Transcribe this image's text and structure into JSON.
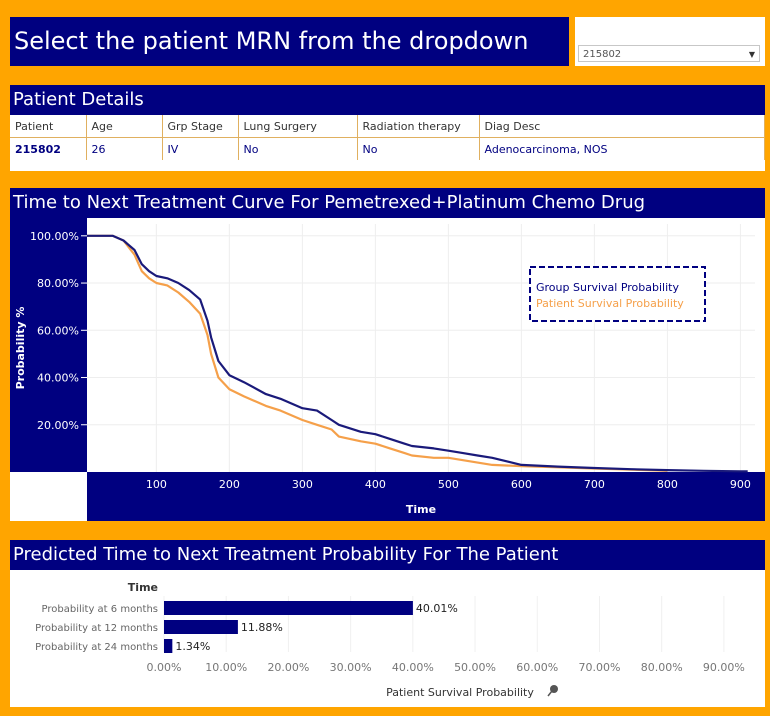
{
  "header": {
    "title": "Select the patient MRN from the dropdown",
    "selected_mrn": "215802"
  },
  "patient_details": {
    "title": "Patient Details",
    "columns": [
      "Patient",
      "Age",
      "Grp Stage",
      "Lung Surgery",
      "Radiation therapy",
      "Diag Desc"
    ],
    "values": [
      "215802",
      "26",
      "IV",
      "No",
      "No",
      "Adenocarcinoma, NOS"
    ]
  },
  "colors": {
    "navy": "#000080",
    "orange": "#ffa500",
    "patient_line": "#f5a04a",
    "group_line": "#1a1a7a"
  },
  "chart_data": [
    {
      "type": "line",
      "title": "Time to Next Treatment Curve For Pemetrexed+Platinum Chemo Drug",
      "xlabel": "Time",
      "ylabel": "Probability %",
      "xlim": [
        5,
        920
      ],
      "ylim": [
        0,
        105
      ],
      "xticks": [
        100,
        200,
        300,
        400,
        500,
        600,
        700,
        800,
        900
      ],
      "yticks": [
        20,
        40,
        60,
        80,
        100
      ],
      "ytick_labels": [
        "20.00%",
        "40.00%",
        "60.00%",
        "80.00%",
        "100.00%"
      ],
      "legend_position": "top-right",
      "series": [
        {
          "name": "Group Survival Probability",
          "x": [
            5,
            40,
            55,
            70,
            80,
            90,
            100,
            115,
            130,
            145,
            160,
            170,
            175,
            185,
            200,
            220,
            250,
            270,
            300,
            320,
            340,
            350,
            380,
            400,
            420,
            440,
            450,
            480,
            500,
            520,
            540,
            560,
            600,
            650,
            700,
            750,
            800,
            850,
            900,
            910
          ],
          "y": [
            100,
            100,
            98,
            94,
            88,
            85,
            83,
            82,
            80,
            77,
            73,
            64,
            57,
            47,
            41,
            38,
            33,
            31,
            27,
            26,
            22,
            20,
            17,
            16,
            14,
            12,
            11,
            10,
            9,
            8,
            7,
            6,
            3,
            2.3,
            1.7,
            1.2,
            0.8,
            0.5,
            0.3,
            0.3
          ]
        },
        {
          "name": "Patient Survival Probability",
          "x": [
            5,
            40,
            55,
            70,
            80,
            90,
            100,
            115,
            130,
            145,
            160,
            170,
            175,
            185,
            200,
            220,
            250,
            270,
            300,
            320,
            340,
            350,
            380,
            400,
            420,
            440,
            450,
            480,
            500,
            520,
            540,
            560,
            600,
            650,
            700,
            750,
            800
          ],
          "y": [
            100,
            100,
            98,
            92,
            85,
            82,
            80,
            79,
            76,
            72,
            67,
            58,
            50,
            40,
            35,
            32,
            28,
            26,
            22,
            20,
            18,
            15,
            13,
            12,
            10,
            8,
            7,
            6,
            6,
            5,
            4,
            3,
            2.5,
            2,
            1.5,
            1,
            0.5
          ]
        }
      ]
    },
    {
      "type": "bar",
      "title": "Predicted Time to Next Treatment Probability For The Patient",
      "category_header": "Time",
      "categories": [
        "Probability at 6 months",
        "Probability at 12 months",
        "Probability at 24 months"
      ],
      "values": [
        40.01,
        11.88,
        1.34
      ],
      "value_labels": [
        "40.01%",
        "11.88%",
        "1.34%"
      ],
      "xlabel": "Patient Survival Probability",
      "xlim": [
        0,
        95
      ],
      "xticks": [
        0,
        10,
        20,
        30,
        40,
        50,
        60,
        70,
        80,
        90
      ],
      "xtick_labels": [
        "0.00%",
        "10.00%",
        "20.00%",
        "30.00%",
        "40.00%",
        "50.00%",
        "60.00%",
        "70.00%",
        "80.00%",
        "90.00%"
      ],
      "pin_icon": "pin-icon"
    }
  ]
}
